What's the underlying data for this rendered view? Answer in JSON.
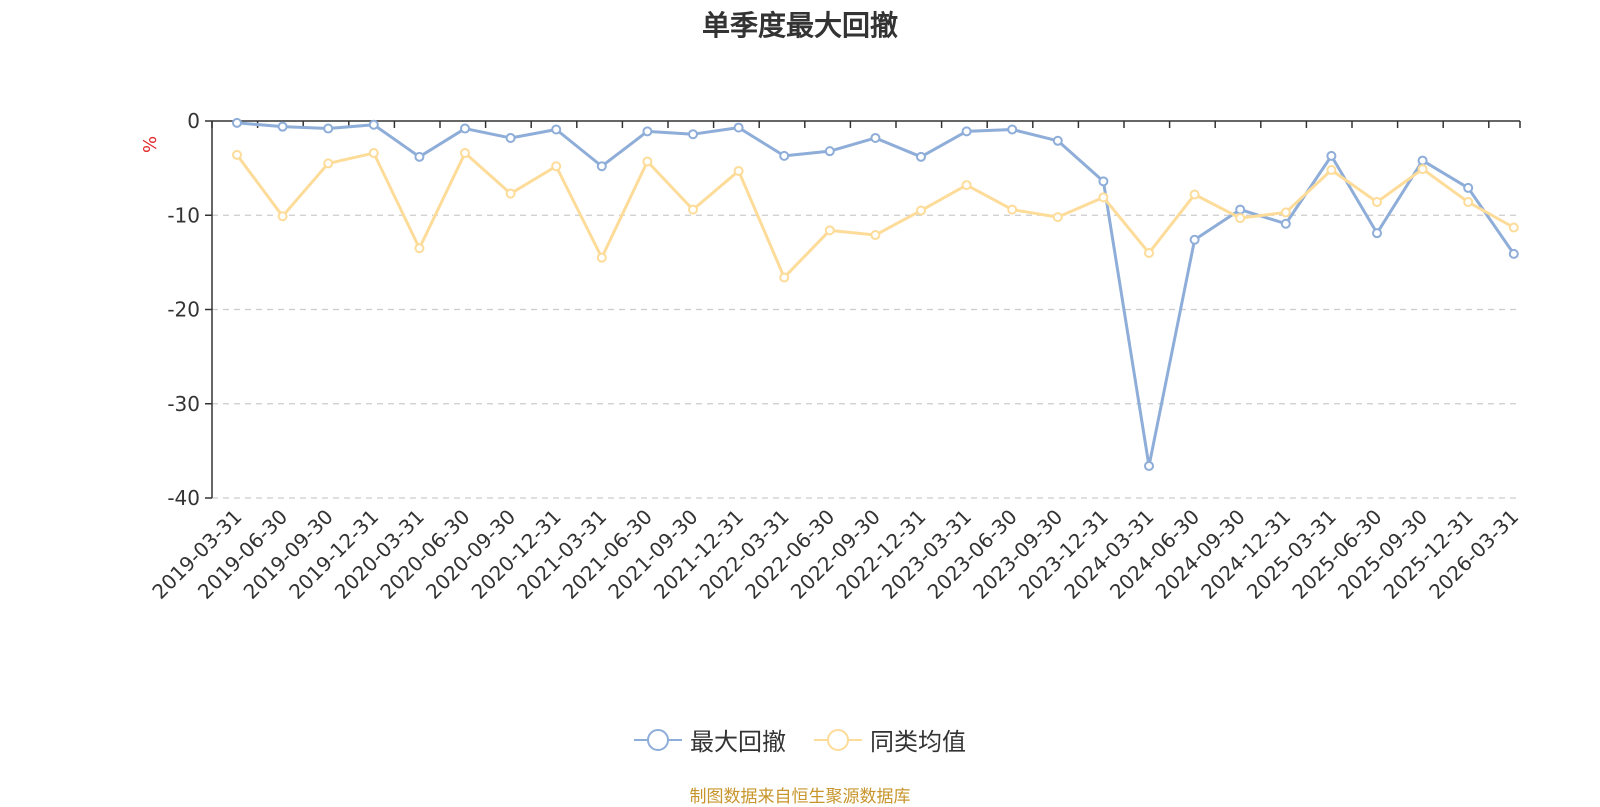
{
  "page": {
    "title": "单季度最大回撤",
    "unit_label": "%",
    "source": "制图数据来自恒生聚源数据库"
  },
  "colors": {
    "series_max_drawdown": "#8eadd8",
    "series_peer_avg": "#fddc9a",
    "axis": "#333333",
    "grid": "#cccccc",
    "unit_label": "#e0262a",
    "source": "#c8952c"
  },
  "chart_data": {
    "type": "line",
    "title": "单季度最大回撤",
    "ylabel": "%",
    "ylim": [
      -40,
      0
    ],
    "yticks": [
      0,
      -10,
      -20,
      -30,
      -40
    ],
    "grid": "horizontal-dashed",
    "legend_position": "bottom",
    "categories": [
      "2019-03-31",
      "2019-06-30",
      "2019-09-30",
      "2019-12-31",
      "2020-03-31",
      "2020-06-30",
      "2020-09-30",
      "2020-12-31",
      "2021-03-31",
      "2021-06-30",
      "2021-09-30",
      "2021-12-31",
      "2022-03-31",
      "2022-06-30",
      "2022-09-30",
      "2022-12-31",
      "2023-03-31",
      "2023-06-30",
      "2023-09-30",
      "2023-12-31",
      "2024-03-31",
      "2024-06-30",
      "2024-09-30",
      "2024-12-31",
      "2025-03-31",
      "2025-06-30",
      "2025-09-30",
      "2025-12-31",
      "2026-03-31"
    ],
    "series": [
      {
        "name": "最大回撤",
        "values": [
          -0.2,
          -0.6,
          -0.8,
          -0.4,
          -3.8,
          -0.8,
          -1.8,
          -0.9,
          -4.8,
          -1.1,
          -1.4,
          -0.7,
          -3.7,
          -3.2,
          -1.8,
          -3.8,
          -1.1,
          -0.9,
          -2.1,
          -6.4,
          -36.6,
          -12.6,
          -9.4,
          -10.9,
          -3.7,
          -11.9,
          -4.2,
          -7.1,
          -14.1
        ]
      },
      {
        "name": "同类均值",
        "values": [
          -3.6,
          -10.1,
          -4.5,
          -3.4,
          -13.5,
          -3.4,
          -7.7,
          -4.8,
          -14.5,
          -4.3,
          -9.4,
          -5.3,
          -16.6,
          -11.6,
          -12.1,
          -9.5,
          -6.8,
          -9.4,
          -10.2,
          -8.1,
          -14.0,
          -7.8,
          -10.3,
          -9.7,
          -5.2,
          -8.6,
          -5.1,
          -8.6,
          -11.3
        ]
      }
    ]
  }
}
